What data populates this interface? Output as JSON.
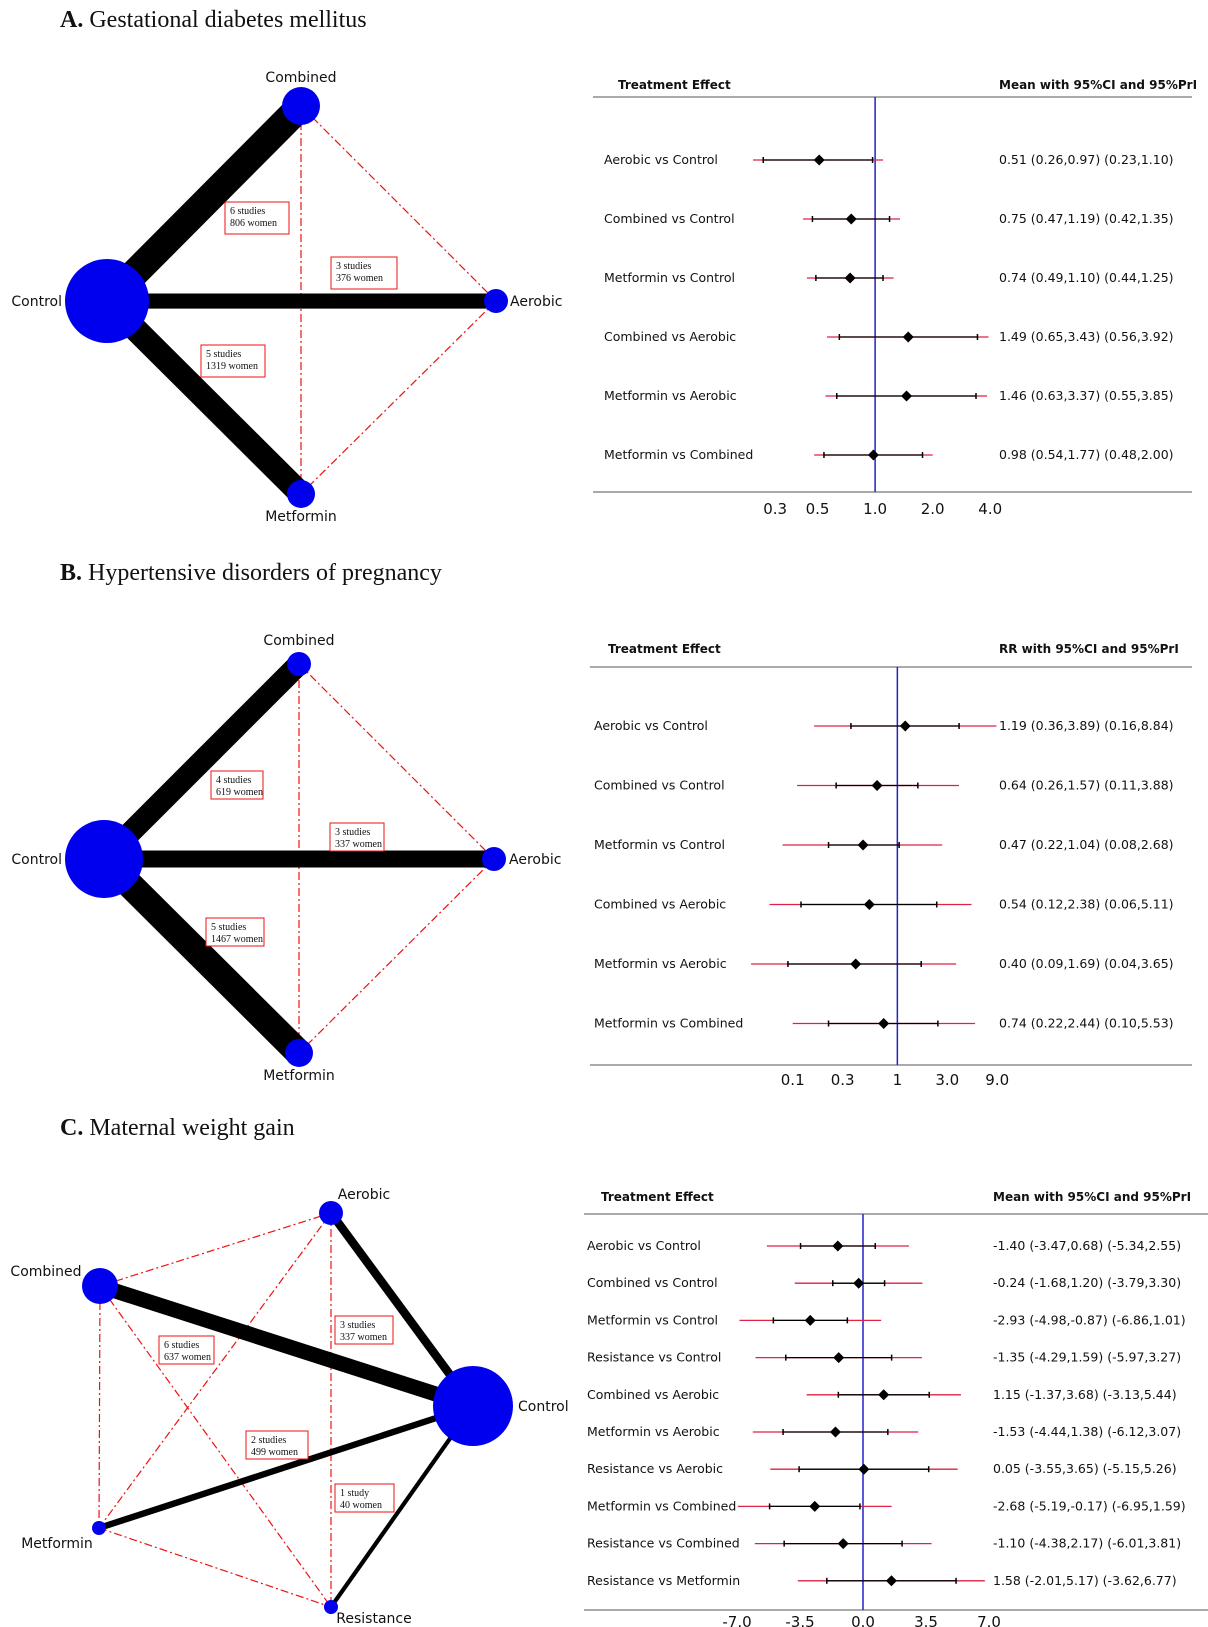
{
  "colors": {
    "node": "#0000ee",
    "edge": "#000000",
    "dashed": "#ee1111",
    "refline": "#2222cc",
    "pri": "#dd2244",
    "ci": "#000000"
  },
  "chart_data": [
    {
      "type": "network",
      "title_letter": "A.",
      "title": "Gestational diabetes mellitus",
      "nodes": [
        {
          "id": "Combined",
          "label": "Combined",
          "size": "small"
        },
        {
          "id": "Control",
          "label": "Control",
          "size": "large"
        },
        {
          "id": "Aerobic",
          "label": "Aerobic",
          "size": "small"
        },
        {
          "id": "Metformin",
          "label": "Metformin",
          "size": "small"
        }
      ],
      "edges": [
        {
          "from": "Control",
          "to": "Combined",
          "studies": "6 studies",
          "women": "806 women",
          "weight": 6
        },
        {
          "from": "Control",
          "to": "Aerobic",
          "studies": "3 studies",
          "women": "376 women",
          "weight": 3
        },
        {
          "from": "Control",
          "to": "Metformin",
          "studies": "5 studies",
          "women": "1319 women",
          "weight": 5
        }
      ],
      "indirect": [
        [
          "Combined",
          "Aerobic"
        ],
        [
          "Combined",
          "Metformin"
        ],
        [
          "Aerobic",
          "Metformin"
        ]
      ]
    },
    {
      "type": "forest",
      "header_left": "Treatment Effect",
      "header_right": "Mean with 95%CI and 95%PrI",
      "scale": "log",
      "ticks": [
        "0.3",
        "0.5",
        "1.0",
        "2.0",
        "4.0"
      ],
      "tick_values": [
        0.3,
        0.5,
        1.0,
        2.0,
        4.0
      ],
      "x_range": [
        0.25,
        4.5
      ],
      "ref": 1.0,
      "rows": [
        {
          "label": "Aerobic vs Control",
          "est": 0.51,
          "ci": [
            0.26,
            0.97
          ],
          "pri": [
            0.23,
            1.1
          ],
          "text": "0.51 (0.26,0.97)  (0.23,1.10)"
        },
        {
          "label": "Combined vs Control",
          "est": 0.75,
          "ci": [
            0.47,
            1.19
          ],
          "pri": [
            0.42,
            1.35
          ],
          "text": "0.75 (0.47,1.19)  (0.42,1.35)"
        },
        {
          "label": "Metformin vs Control",
          "est": 0.74,
          "ci": [
            0.49,
            1.1
          ],
          "pri": [
            0.44,
            1.25
          ],
          "text": "0.74 (0.49,1.10)  (0.44,1.25)"
        },
        {
          "label": "Combined vs Aerobic",
          "est": 1.49,
          "ci": [
            0.65,
            3.43
          ],
          "pri": [
            0.56,
            3.92
          ],
          "text": "1.49 (0.65,3.43)  (0.56,3.92)"
        },
        {
          "label": "Metformin vs Aerobic",
          "est": 1.46,
          "ci": [
            0.63,
            3.37
          ],
          "pri": [
            0.55,
            3.85
          ],
          "text": "1.46 (0.63,3.37)  (0.55,3.85)"
        },
        {
          "label": "Metformin vs Combined",
          "est": 0.98,
          "ci": [
            0.54,
            1.77
          ],
          "pri": [
            0.48,
            2.0
          ],
          "text": "0.98 (0.54,1.77)  (0.48,2.00)"
        }
      ]
    },
    {
      "type": "network",
      "title_letter": "B.",
      "title": "Hypertensive disorders of pregnancy",
      "nodes": [
        {
          "id": "Combined",
          "label": "Combined",
          "size": "small"
        },
        {
          "id": "Control",
          "label": "Control",
          "size": "large"
        },
        {
          "id": "Aerobic",
          "label": "Aerobic",
          "size": "small"
        },
        {
          "id": "Metformin",
          "label": "Metformin",
          "size": "small"
        }
      ],
      "edges": [
        {
          "from": "Control",
          "to": "Combined",
          "studies": "4 studies",
          "women": "619 women",
          "weight": 4
        },
        {
          "from": "Control",
          "to": "Aerobic",
          "studies": "3 studies",
          "women": "337 women",
          "weight": 3
        },
        {
          "from": "Control",
          "to": "Metformin",
          "studies": "5 studies",
          "women": "1467 women",
          "weight": 5
        }
      ],
      "indirect": [
        [
          "Combined",
          "Aerobic"
        ],
        [
          "Combined",
          "Metformin"
        ],
        [
          "Aerobic",
          "Metformin"
        ]
      ]
    },
    {
      "type": "forest",
      "header_left": "Treatment Effect",
      "header_right": "RR with 95%CI and 95%PrI",
      "scale": "log",
      "ticks": [
        "0.1",
        "0.3",
        "1",
        "3.0",
        "9.0"
      ],
      "tick_values": [
        0.1,
        0.3,
        1,
        3.0,
        9.0
      ],
      "x_range": [
        0.035,
        10
      ],
      "ref": 1,
      "rows": [
        {
          "label": "Aerobic vs Control",
          "est": 1.19,
          "ci": [
            0.36,
            3.89
          ],
          "pri": [
            0.16,
            8.84
          ],
          "text": "1.19 (0.36,3.89)  (0.16,8.84)"
        },
        {
          "label": "Combined vs Control",
          "est": 0.64,
          "ci": [
            0.26,
            1.57
          ],
          "pri": [
            0.11,
            3.88
          ],
          "text": "0.64 (0.26,1.57)  (0.11,3.88)"
        },
        {
          "label": "Metformin vs Control",
          "est": 0.47,
          "ci": [
            0.22,
            1.04
          ],
          "pri": [
            0.08,
            2.68
          ],
          "text": "0.47 (0.22,1.04)  (0.08,2.68)"
        },
        {
          "label": "Combined vs Aerobic",
          "est": 0.54,
          "ci": [
            0.12,
            2.38
          ],
          "pri": [
            0.06,
            5.11
          ],
          "text": "0.54 (0.12,2.38)  (0.06,5.11)"
        },
        {
          "label": "Metformin vs Aerobic",
          "est": 0.4,
          "ci": [
            0.09,
            1.69
          ],
          "pri": [
            0.04,
            3.65
          ],
          "text": "0.40 (0.09,1.69)  (0.04,3.65)"
        },
        {
          "label": "Metformin vs Combined",
          "est": 0.74,
          "ci": [
            0.22,
            2.44
          ],
          "pri": [
            0.1,
            5.53
          ],
          "text": "0.74 (0.22,2.44)  (0.10,5.53)"
        }
      ]
    },
    {
      "type": "network",
      "title_letter": "C.",
      "title": "Maternal weight gain",
      "nodes": [
        {
          "id": "Aerobic",
          "label": "Aerobic",
          "size": "small"
        },
        {
          "id": "Combined",
          "label": "Combined",
          "size": "small"
        },
        {
          "id": "Control",
          "label": "Control",
          "size": "large"
        },
        {
          "id": "Metformin",
          "label": "Metformin",
          "size": "tiny"
        },
        {
          "id": "Resistance",
          "label": "Resistance",
          "size": "tiny"
        }
      ],
      "edges": [
        {
          "from": "Control",
          "to": "Combined",
          "studies": "6 studies",
          "women": "637 women",
          "weight": 6
        },
        {
          "from": "Control",
          "to": "Aerobic",
          "studies": "3 studies",
          "women": "337 women",
          "weight": 3
        },
        {
          "from": "Control",
          "to": "Metformin",
          "studies": "2 studies",
          "women": "499 women",
          "weight": 2
        },
        {
          "from": "Control",
          "to": "Resistance",
          "studies": "1 study",
          "women": "40 women",
          "weight": 1
        }
      ],
      "indirect": [
        [
          "Combined",
          "Aerobic"
        ],
        [
          "Combined",
          "Metformin"
        ],
        [
          "Combined",
          "Resistance"
        ],
        [
          "Aerobic",
          "Metformin"
        ],
        [
          "Aerobic",
          "Resistance"
        ],
        [
          "Metformin",
          "Resistance"
        ]
      ]
    },
    {
      "type": "forest",
      "header_left": "Treatment Effect",
      "header_right": "Mean with 95%CI and 95%PrI",
      "scale": "linear",
      "ticks": [
        "-7.0",
        "-3.5",
        "0.0",
        "3.5",
        "7.0"
      ],
      "tick_values": [
        -7.0,
        -3.5,
        0.0,
        3.5,
        7.0
      ],
      "x_range": [
        -8.5,
        8.5
      ],
      "ref": 0,
      "rows": [
        {
          "label": "Aerobic vs Control",
          "est": -1.4,
          "ci": [
            -3.47,
            0.68
          ],
          "pri": [
            -5.34,
            2.55
          ],
          "text": "-1.40 (-3.47,0.68)  (-5.34,2.55)"
        },
        {
          "label": "Combined vs Control",
          "est": -0.24,
          "ci": [
            -1.68,
            1.2
          ],
          "pri": [
            -3.79,
            3.3
          ],
          "text": "-0.24 (-1.68,1.20)  (-3.79,3.30)"
        },
        {
          "label": "Metformin vs Control",
          "est": -2.93,
          "ci": [
            -4.98,
            -0.87
          ],
          "pri": [
            -6.86,
            1.01
          ],
          "text": "-2.93 (-4.98,-0.87)  (-6.86,1.01)"
        },
        {
          "label": "Resistance vs Control",
          "est": -1.35,
          "ci": [
            -4.29,
            1.59
          ],
          "pri": [
            -5.97,
            3.27
          ],
          "text": "-1.35 (-4.29,1.59)  (-5.97,3.27)"
        },
        {
          "label": "Combined vs Aerobic",
          "est": 1.15,
          "ci": [
            -1.37,
            3.68
          ],
          "pri": [
            -3.13,
            5.44
          ],
          "text": "1.15 (-1.37,3.68)  (-3.13,5.44)"
        },
        {
          "label": "Metformin vs Aerobic",
          "est": -1.53,
          "ci": [
            -4.44,
            1.38
          ],
          "pri": [
            -6.12,
            3.07
          ],
          "text": "-1.53 (-4.44,1.38)  (-6.12,3.07)"
        },
        {
          "label": "Resistance vs Aerobic",
          "est": 0.05,
          "ci": [
            -3.55,
            3.65
          ],
          "pri": [
            -5.15,
            5.26
          ],
          "text": "0.05 (-3.55,3.65)  (-5.15,5.26)"
        },
        {
          "label": "Metformin vs Combined",
          "est": -2.68,
          "ci": [
            -5.19,
            -0.17
          ],
          "pri": [
            -6.95,
            1.59
          ],
          "text": "-2.68 (-5.19,-0.17)  (-6.95,1.59)"
        },
        {
          "label": "Resistance vs Combined",
          "est": -1.1,
          "ci": [
            -4.38,
            2.17
          ],
          "pri": [
            -6.01,
            3.81
          ],
          "text": "-1.10 (-4.38,2.17)  (-6.01,3.81)"
        },
        {
          "label": "Resistance vs Metformin",
          "est": 1.58,
          "ci": [
            -2.01,
            5.17
          ],
          "pri": [
            -3.62,
            6.77
          ],
          "text": "1.58 (-2.01,5.17)  (-3.62,6.77)"
        }
      ]
    }
  ]
}
